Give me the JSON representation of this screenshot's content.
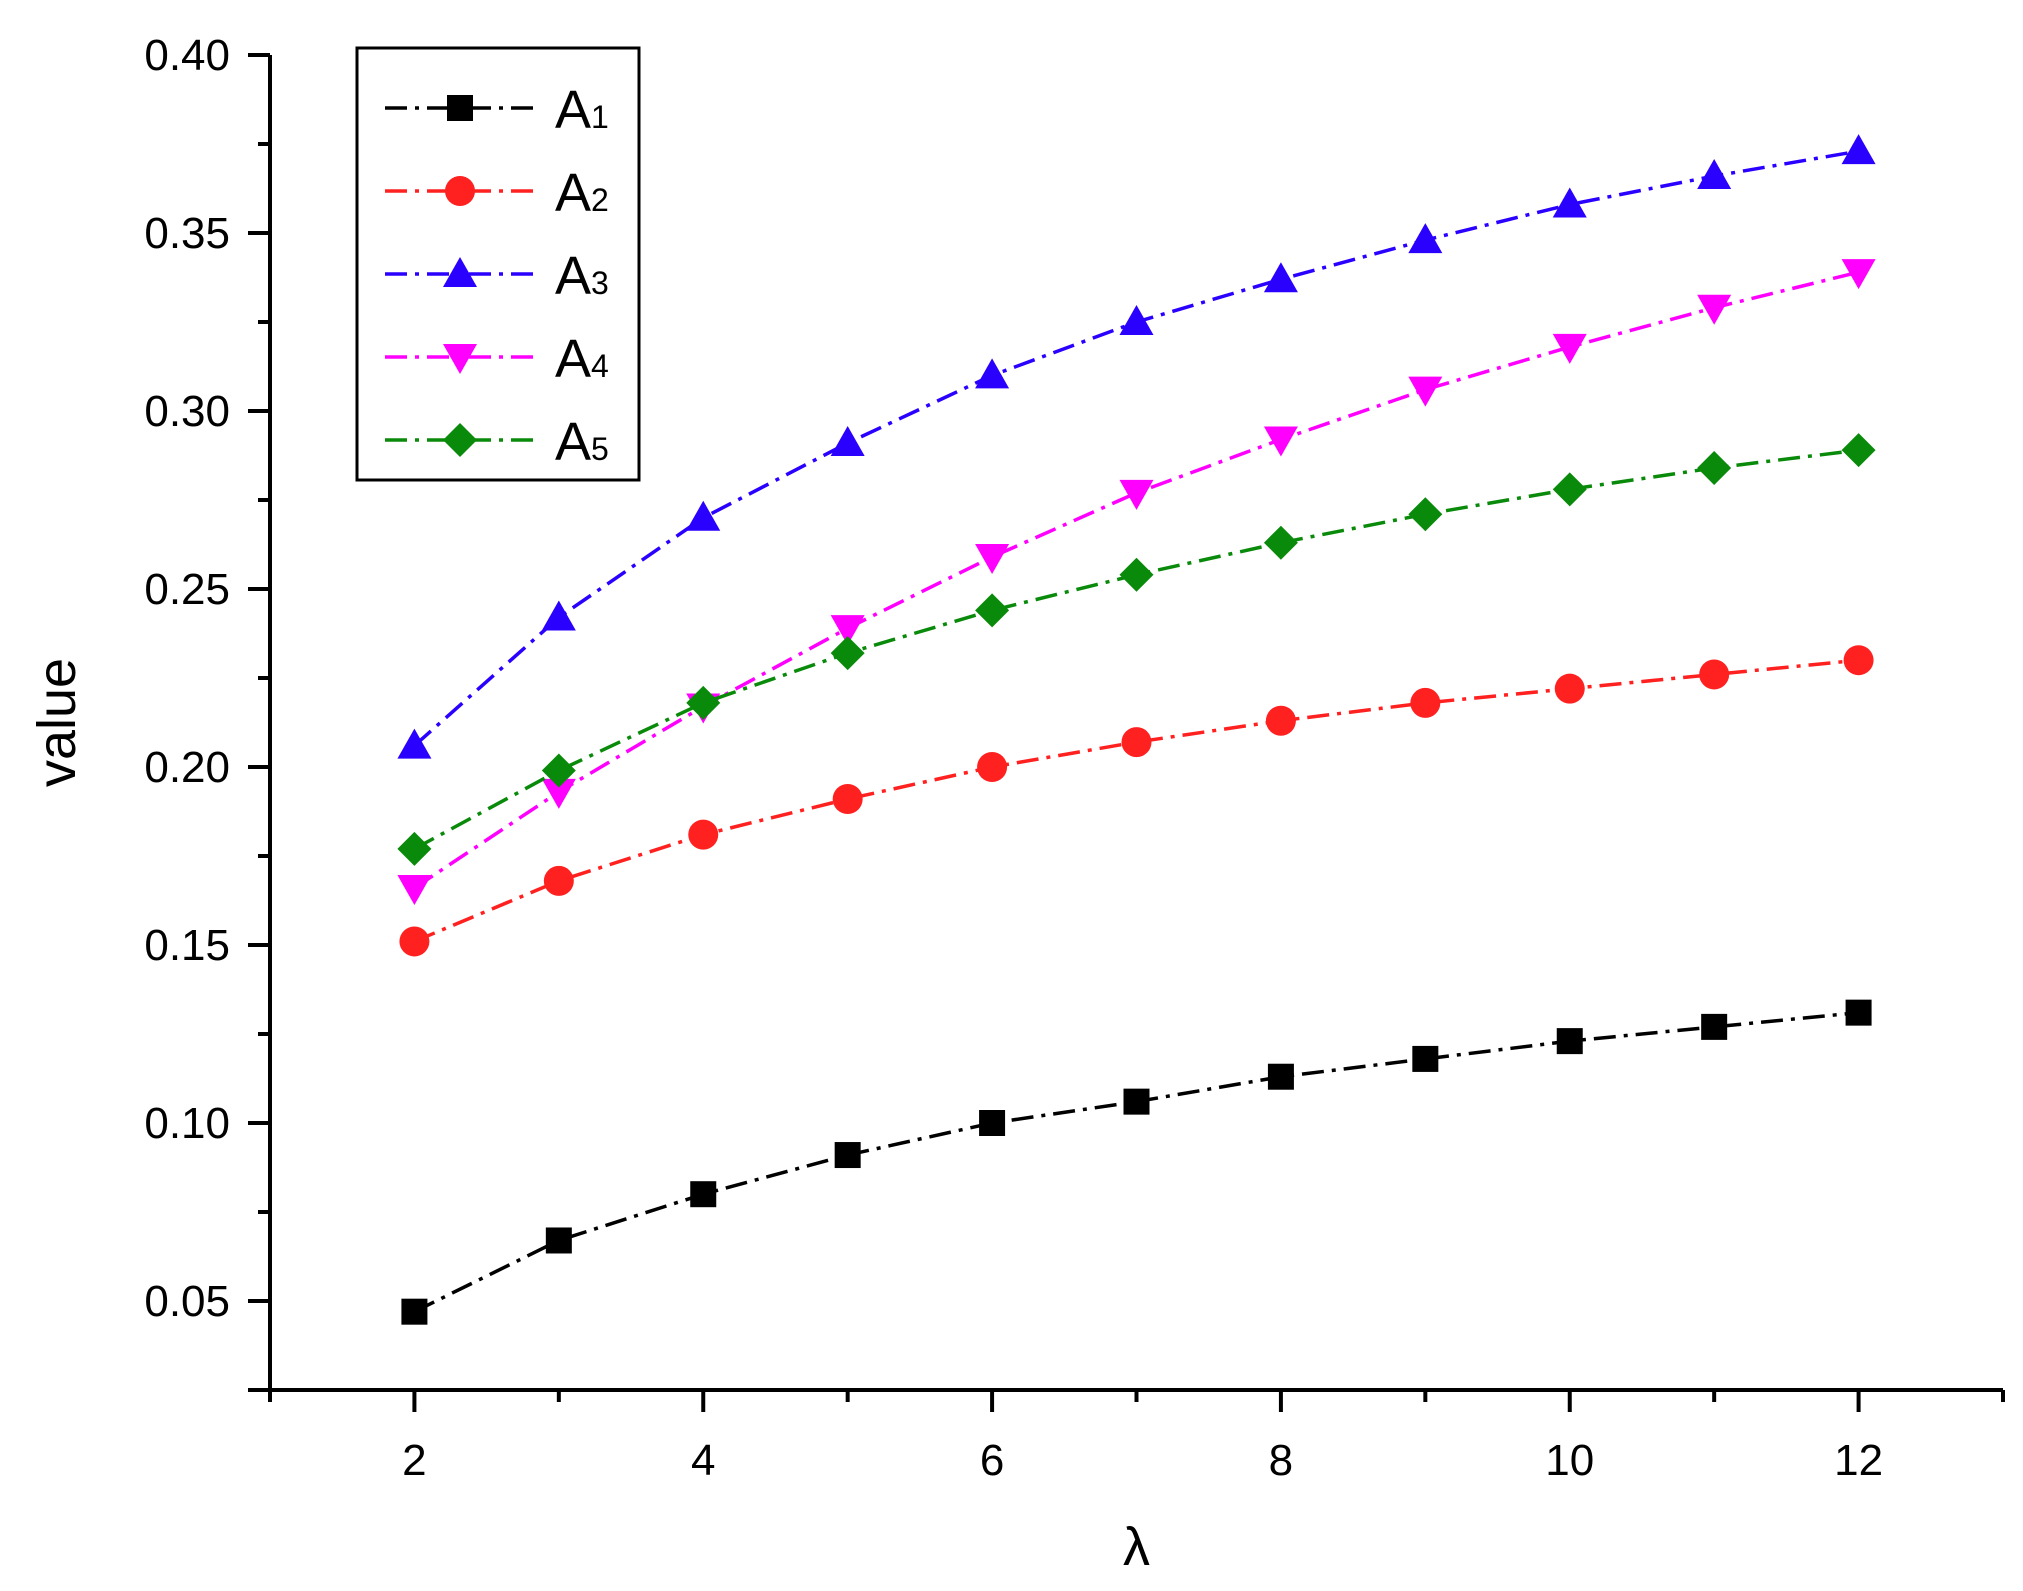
{
  "chart_data": {
    "type": "line",
    "xlabel": "λ",
    "ylabel": "value",
    "xlim": [
      1,
      13
    ],
    "ylim": [
      0.025,
      0.4
    ],
    "x_ticks": [
      2,
      4,
      6,
      8,
      10,
      12
    ],
    "x_tick_labels": [
      "2",
      "4",
      "6",
      "8",
      "10",
      "12"
    ],
    "y_ticks": [
      0.05,
      0.1,
      0.15,
      0.2,
      0.25,
      0.3,
      0.35,
      0.4
    ],
    "y_tick_labels": [
      "0.05",
      "0.10",
      "0.15",
      "0.20",
      "0.25",
      "0.30",
      "0.35",
      "0.40"
    ],
    "grid": false,
    "legend_position": "top-left",
    "x": [
      2,
      3,
      4,
      5,
      6,
      7,
      8,
      9,
      10,
      11,
      12
    ],
    "series": [
      {
        "name": "A",
        "subscript": "1",
        "color": "#000000",
        "marker": "square",
        "values": [
          0.047,
          0.067,
          0.08,
          0.091,
          0.1,
          0.106,
          0.113,
          0.118,
          0.123,
          0.127,
          0.131
        ]
      },
      {
        "name": "A",
        "subscript": "2",
        "color": "#ff2020",
        "marker": "circle",
        "values": [
          0.151,
          0.168,
          0.181,
          0.191,
          0.2,
          0.207,
          0.213,
          0.218,
          0.222,
          0.226,
          0.23
        ]
      },
      {
        "name": "A",
        "subscript": "3",
        "color": "#2a00ff",
        "marker": "triangle-up",
        "values": [
          0.206,
          0.242,
          0.27,
          0.291,
          0.31,
          0.325,
          0.337,
          0.348,
          0.358,
          0.366,
          0.373
        ]
      },
      {
        "name": "A",
        "subscript": "4",
        "color": "#ff00ff",
        "marker": "triangle-down",
        "values": [
          0.166,
          0.193,
          0.217,
          0.239,
          0.259,
          0.277,
          0.292,
          0.306,
          0.318,
          0.329,
          0.339
        ]
      },
      {
        "name": "A",
        "subscript": "5",
        "color": "#0a8a0a",
        "marker": "diamond",
        "values": [
          0.177,
          0.199,
          0.218,
          0.232,
          0.244,
          0.254,
          0.263,
          0.271,
          0.278,
          0.284,
          0.289
        ]
      }
    ]
  }
}
